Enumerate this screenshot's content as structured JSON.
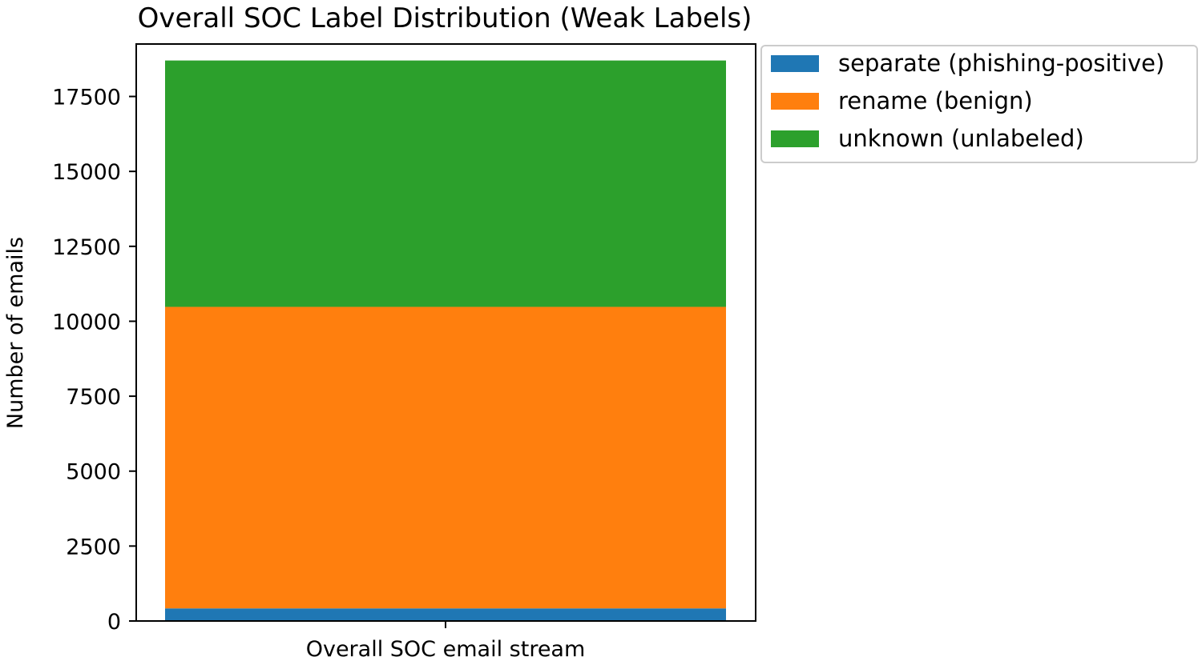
{
  "chart_data": {
    "type": "bar",
    "stacked": true,
    "title": "Overall SOC Label Distribution (Weak Labels)",
    "xlabel": "",
    "ylabel": "Number of emails",
    "categories": [
      "Overall SOC email stream"
    ],
    "series": [
      {
        "name": "separate (phishing-positive)",
        "values": [
          420
        ],
        "color": "#1f77b4"
      },
      {
        "name": "rename (benign)",
        "values": [
          10060
        ],
        "color": "#ff7f0e"
      },
      {
        "name": "unknown (unlabeled)",
        "values": [
          8220
        ],
        "color": "#2ca02c"
      }
    ],
    "ylim": [
      0,
      19250
    ],
    "yticks": [
      0,
      2500,
      5000,
      7500,
      10000,
      12500,
      15000,
      17500
    ],
    "ytick_labels": [
      "0",
      "2500",
      "5000",
      "7500",
      "10000",
      "12500",
      "15000",
      "17500"
    ],
    "grid": false,
    "legend_position": "outside-top-right"
  }
}
